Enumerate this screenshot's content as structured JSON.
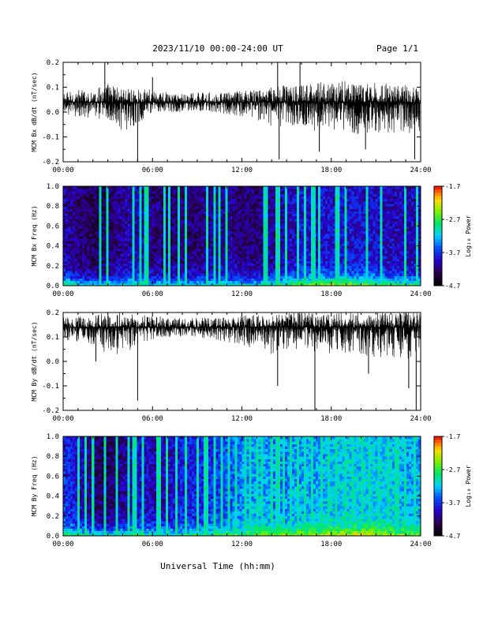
{
  "header": {
    "title": "2023/11/10  00:00-24:00 UT",
    "page": "Page 1/1"
  },
  "footer": {
    "xlabel": "Universal Time (hh:mm)"
  },
  "chart_data": [
    {
      "type": "line",
      "ylabel": "MCM Bx dB/dt (nT/sec)",
      "xlim": [
        "00:00",
        "24:00"
      ],
      "ylim": [
        -0.2,
        0.2
      ],
      "x_ticks": [
        "00:00",
        "06:00",
        "12:00",
        "18:00",
        "24:00"
      ],
      "y_ticks": [
        "0.2",
        "0.1",
        "0.0",
        "-0.1",
        "-0.2"
      ],
      "baseline": 0.04,
      "x_hours": [
        0,
        1,
        2,
        3,
        4,
        5,
        6,
        7,
        8,
        9,
        10,
        11,
        12,
        13,
        14,
        15,
        16,
        17,
        18,
        19,
        20,
        21,
        22,
        23,
        24
      ],
      "upper_envelope": [
        0.08,
        0.09,
        0.09,
        0.12,
        0.1,
        0.09,
        0.1,
        0.08,
        0.08,
        0.08,
        0.08,
        0.08,
        0.09,
        0.09,
        0.1,
        0.11,
        0.11,
        0.12,
        0.12,
        0.13,
        0.12,
        0.12,
        0.12,
        0.11,
        0.11
      ],
      "lower_envelope": [
        -0.01,
        -0.02,
        -0.03,
        -0.03,
        -0.08,
        -0.05,
        0.0,
        0.0,
        0.0,
        0.0,
        0.0,
        -0.01,
        -0.02,
        -0.04,
        -0.07,
        -0.06,
        -0.05,
        -0.08,
        -0.08,
        -0.09,
        -0.09,
        -0.09,
        -0.09,
        -0.09,
        -0.08
      ],
      "spikes": [
        {
          "t": 2.8,
          "v": 0.2
        },
        {
          "t": 5.0,
          "v": -0.2
        },
        {
          "t": 6.0,
          "v": 0.14
        },
        {
          "t": 14.4,
          "v": 0.2
        },
        {
          "t": 14.5,
          "v": -0.19
        },
        {
          "t": 15.9,
          "v": 0.2
        },
        {
          "t": 17.2,
          "v": -0.16
        },
        {
          "t": 20.3,
          "v": -0.15
        },
        {
          "t": 23.6,
          "v": -0.19
        }
      ]
    },
    {
      "type": "heatmap",
      "ylabel": "MCM Bx Freq (Hz)",
      "colorbar_label": "Log₁₀ Power",
      "colorbar_ticks": [
        "-1.7",
        "-2.7",
        "-3.7",
        "-4.7"
      ],
      "clim": [
        -4.7,
        -1.7
      ],
      "xlim": [
        "00:00",
        "24:00"
      ],
      "ylim": [
        0.0,
        1.0
      ],
      "x_ticks": [
        "00:00",
        "06:00",
        "12:00",
        "18:00",
        "24:00"
      ],
      "y_ticks": [
        "1.0",
        "0.8",
        "0.6",
        "0.4",
        "0.2",
        "0.0"
      ],
      "x_hours": [
        0,
        1,
        2,
        3,
        4,
        5,
        6,
        7,
        8,
        9,
        10,
        11,
        12,
        13,
        14,
        15,
        16,
        17,
        18,
        19,
        20,
        21,
        22,
        23,
        24
      ],
      "background_power": [
        -4.0,
        -4.2,
        -4.3,
        -4.3,
        -4.1,
        -4.0,
        -4.2,
        -4.2,
        -4.2,
        -4.2,
        -4.1,
        -4.1,
        -4.2,
        -4.2,
        -4.1,
        -4.0,
        -3.9,
        -3.9,
        -3.9,
        -3.9,
        -3.9,
        -3.9,
        -4.0,
        -4.0,
        -4.0
      ],
      "low_freq_power": [
        -2.6,
        -2.9,
        -3.0,
        -3.0,
        -2.8,
        -2.8,
        -3.0,
        -3.0,
        -3.0,
        -2.9,
        -2.9,
        -2.9,
        -2.9,
        -2.9,
        -2.8,
        -2.6,
        -2.4,
        -2.3,
        -2.2,
        -2.2,
        -2.3,
        -2.4,
        -2.6,
        -2.7,
        -2.7
      ],
      "burst_hours": [
        2.5,
        3.0,
        4.7,
        5.2,
        5.6,
        6.8,
        7.1,
        7.7,
        8.3,
        9.7,
        10.2,
        10.5,
        11.0,
        13.6,
        14.4,
        15.0,
        15.8,
        16.2,
        16.8,
        17.2,
        18.4,
        19.0,
        20.4,
        21.4,
        22.9,
        23.7
      ]
    },
    {
      "type": "line",
      "ylabel": "MCM By dB/dt (nT/sec)",
      "xlim": [
        "00:00",
        "24:00"
      ],
      "ylim": [
        -0.2,
        0.2
      ],
      "x_ticks": [
        "00:00",
        "06:00",
        "12:00",
        "18:00",
        "24:00"
      ],
      "y_ticks": [
        "0.2",
        "0.1",
        "0.0",
        "-0.1",
        "-0.2"
      ],
      "baseline": 0.14,
      "x_hours": [
        0,
        1,
        2,
        3,
        4,
        5,
        6,
        7,
        8,
        9,
        10,
        11,
        12,
        13,
        14,
        15,
        16,
        17,
        18,
        19,
        20,
        21,
        22,
        23,
        24
      ],
      "upper_envelope": [
        0.18,
        0.19,
        0.19,
        0.2,
        0.2,
        0.19,
        0.19,
        0.18,
        0.18,
        0.18,
        0.18,
        0.18,
        0.19,
        0.19,
        0.19,
        0.2,
        0.2,
        0.2,
        0.2,
        0.2,
        0.2,
        0.2,
        0.2,
        0.2,
        0.2
      ],
      "lower_envelope": [
        0.09,
        0.08,
        0.06,
        0.03,
        0.02,
        0.06,
        0.09,
        0.1,
        0.1,
        0.1,
        0.09,
        0.08,
        0.06,
        0.05,
        0.03,
        0.05,
        0.05,
        0.04,
        0.03,
        0.03,
        0.01,
        0.02,
        0.01,
        0.0,
        0.03
      ],
      "spikes": [
        {
          "t": 2.2,
          "v": 0.0
        },
        {
          "t": 5.0,
          "v": -0.16
        },
        {
          "t": 14.4,
          "v": -0.1
        },
        {
          "t": 16.9,
          "v": -0.21
        },
        {
          "t": 20.5,
          "v": -0.05
        },
        {
          "t": 23.2,
          "v": -0.11
        },
        {
          "t": 23.7,
          "v": -0.2
        }
      ]
    },
    {
      "type": "heatmap",
      "ylabel": "MCM By Freq (Hz)",
      "colorbar_label": "Log₁₀ Power",
      "colorbar_ticks": [
        "-1.7",
        "-2.7",
        "-3.7",
        "-4.7"
      ],
      "clim": [
        -4.7,
        -1.7
      ],
      "xlim": [
        "00:00",
        "24:00"
      ],
      "ylim": [
        0.0,
        1.0
      ],
      "x_ticks": [
        "00:00",
        "06:00",
        "12:00",
        "18:00",
        "24:00"
      ],
      "y_ticks": [
        "1.0",
        "0.8",
        "0.6",
        "0.4",
        "0.2",
        "0.0"
      ],
      "x_hours": [
        0,
        1,
        2,
        3,
        4,
        5,
        6,
        7,
        8,
        9,
        10,
        11,
        12,
        13,
        14,
        15,
        16,
        17,
        18,
        19,
        20,
        21,
        22,
        23,
        24
      ],
      "background_power": [
        -3.7,
        -3.9,
        -4.2,
        -4.3,
        -4.1,
        -3.9,
        -4.0,
        -4.0,
        -3.8,
        -3.8,
        -3.7,
        -3.6,
        -3.4,
        -3.3,
        -3.4,
        -3.4,
        -3.3,
        -3.3,
        -3.2,
        -3.2,
        -3.2,
        -3.2,
        -3.2,
        -3.3,
        -3.3
      ],
      "low_freq_power": [
        -2.6,
        -2.8,
        -2.9,
        -2.9,
        -2.7,
        -2.7,
        -2.8,
        -2.8,
        -2.8,
        -2.7,
        -2.6,
        -2.6,
        -2.5,
        -2.5,
        -2.5,
        -2.4,
        -2.3,
        -2.3,
        -2.2,
        -2.1,
        -2.1,
        -2.2,
        -2.3,
        -2.4,
        -2.5
      ],
      "burst_hours": [
        1.0,
        1.5,
        2.0,
        2.8,
        3.6,
        4.4,
        4.8,
        5.3,
        6.4,
        7.0,
        7.6,
        8.3,
        9.0,
        9.6,
        10.1,
        10.6,
        11.1,
        11.6,
        12.2,
        12.6,
        13.1,
        13.4,
        14.0,
        14.4,
        14.8,
        15.3,
        15.7,
        16.2,
        16.7,
        17.3,
        17.8,
        18.3,
        18.9,
        19.5,
        20.1,
        20.6,
        21.2,
        21.8,
        22.4,
        22.9,
        23.6
      ]
    }
  ]
}
